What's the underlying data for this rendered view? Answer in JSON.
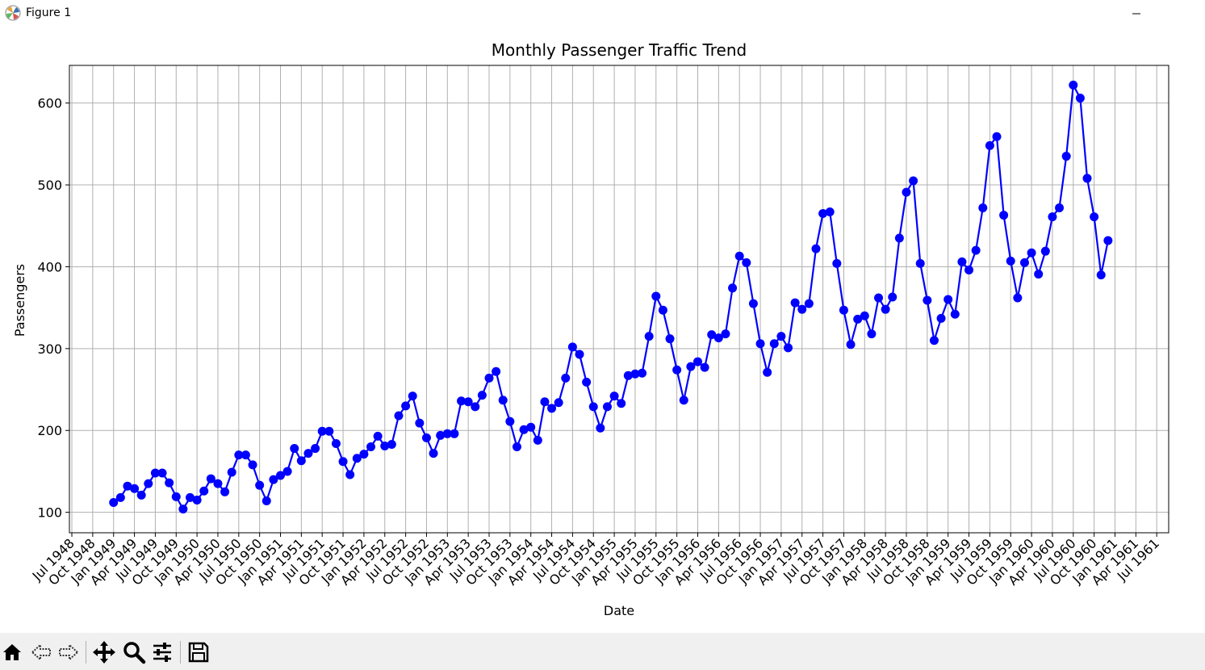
{
  "window": {
    "title": "Figure 1"
  },
  "toolbar": {
    "tools": [
      {
        "name": "home-icon"
      },
      {
        "name": "back-icon"
      },
      {
        "name": "forward-icon"
      },
      {
        "name": "pan-icon"
      },
      {
        "name": "zoom-icon"
      },
      {
        "name": "configure-subplots-icon"
      },
      {
        "name": "save-icon"
      }
    ]
  },
  "chart_data": {
    "type": "line",
    "title": "Monthly Passenger Traffic Trend",
    "xlabel": "Date",
    "ylabel": "Passengers",
    "start": "1949-01",
    "x_ticks": [
      "Jul 1948",
      "Oct 1948",
      "Jan 1949",
      "Apr 1949",
      "Jul 1949",
      "Oct 1949",
      "Jan 1950",
      "Apr 1950",
      "Jul 1950",
      "Oct 1950",
      "Jan 1951",
      "Apr 1951",
      "Jul 1951",
      "Oct 1951",
      "Jan 1952",
      "Apr 1952",
      "Jul 1952",
      "Oct 1952",
      "Jan 1953",
      "Apr 1953",
      "Jul 1953",
      "Oct 1953",
      "Jan 1954",
      "Apr 1954",
      "Jul 1954",
      "Oct 1954",
      "Jan 1955",
      "Apr 1955",
      "Jul 1955",
      "Oct 1955",
      "Jan 1956",
      "Apr 1956",
      "Jul 1956",
      "Oct 1956",
      "Jan 1957",
      "Apr 1957",
      "Jul 1957",
      "Oct 1957",
      "Jan 1958",
      "Apr 1958",
      "Jul 1958",
      "Oct 1958",
      "Jan 1959",
      "Apr 1959",
      "Jul 1959",
      "Oct 1959",
      "Jan 1960",
      "Apr 1960",
      "Jul 1960",
      "Oct 1960",
      "Jan 1961",
      "Apr 1961",
      "Jul 1961"
    ],
    "y_ticks": [
      100,
      200,
      300,
      400,
      500,
      600
    ],
    "ylim": [
      75,
      646
    ],
    "xlim": [
      "1948-06",
      "1961-08"
    ],
    "grid": true,
    "line_color": "#0000ff",
    "marker": "circle",
    "series": [
      {
        "values": [
          112,
          118,
          132,
          129,
          121,
          135,
          148,
          148,
          136,
          119,
          104,
          118,
          115,
          126,
          141,
          135,
          125,
          149,
          170,
          170,
          158,
          133,
          114,
          140,
          145,
          150,
          178,
          163,
          172,
          178,
          199,
          199,
          184,
          162,
          146,
          166,
          171,
          180,
          193,
          181,
          183,
          218,
          230,
          242,
          209,
          191,
          172,
          194,
          196,
          196,
          236,
          235,
          229,
          243,
          264,
          272,
          237,
          211,
          180,
          201,
          204,
          188,
          235,
          227,
          234,
          264,
          302,
          293,
          259,
          229,
          203,
          229,
          242,
          233,
          267,
          269,
          270,
          315,
          364,
          347,
          312,
          274,
          237,
          278,
          284,
          277,
          317,
          313,
          318,
          374,
          413,
          405,
          355,
          306,
          271,
          306,
          315,
          301,
          356,
          348,
          355,
          422,
          465,
          467,
          404,
          347,
          305,
          336,
          340,
          318,
          362,
          348,
          363,
          435,
          491,
          505,
          404,
          359,
          310,
          337,
          360,
          342,
          406,
          396,
          420,
          472,
          548,
          559,
          463,
          407,
          362,
          405,
          417,
          391,
          419,
          461,
          472,
          535,
          622,
          606,
          508,
          461,
          390,
          432
        ]
      }
    ]
  }
}
